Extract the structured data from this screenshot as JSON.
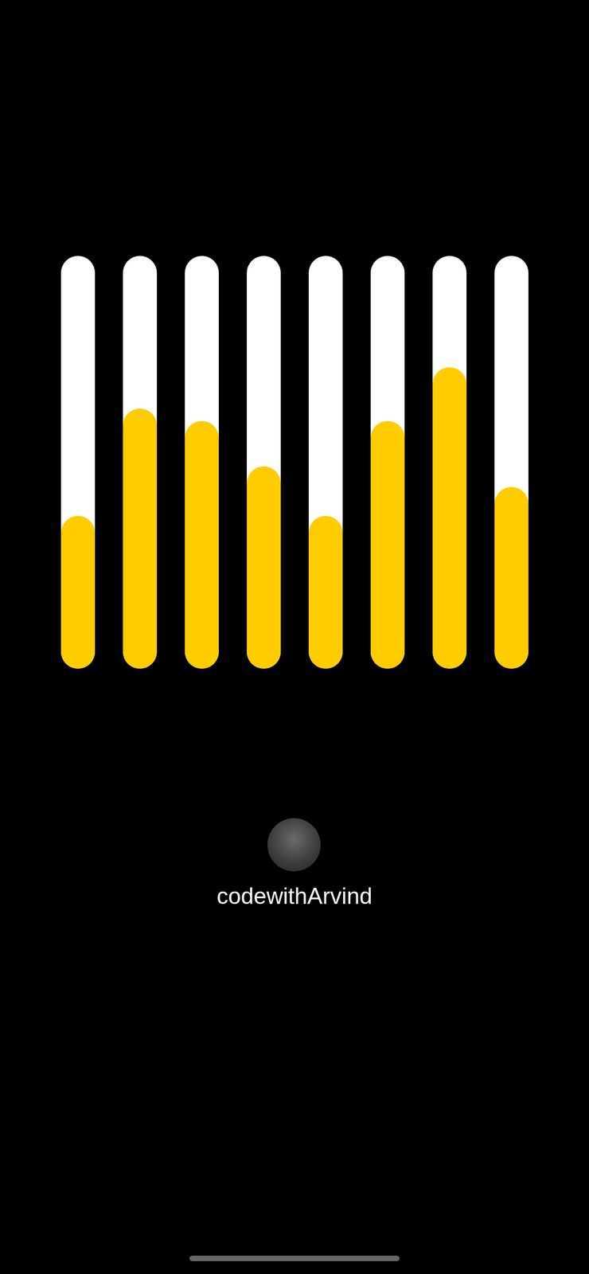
{
  "chart_data": {
    "type": "bar",
    "categories": [
      null,
      null,
      null,
      null,
      null,
      null,
      null,
      null
    ],
    "values": [
      37,
      63,
      60,
      49,
      37,
      60,
      73,
      44
    ],
    "color": "#ffcc00",
    "ylim": [
      0,
      100
    ],
    "tick_labels": false,
    "caption": "codewithArvind"
  }
}
